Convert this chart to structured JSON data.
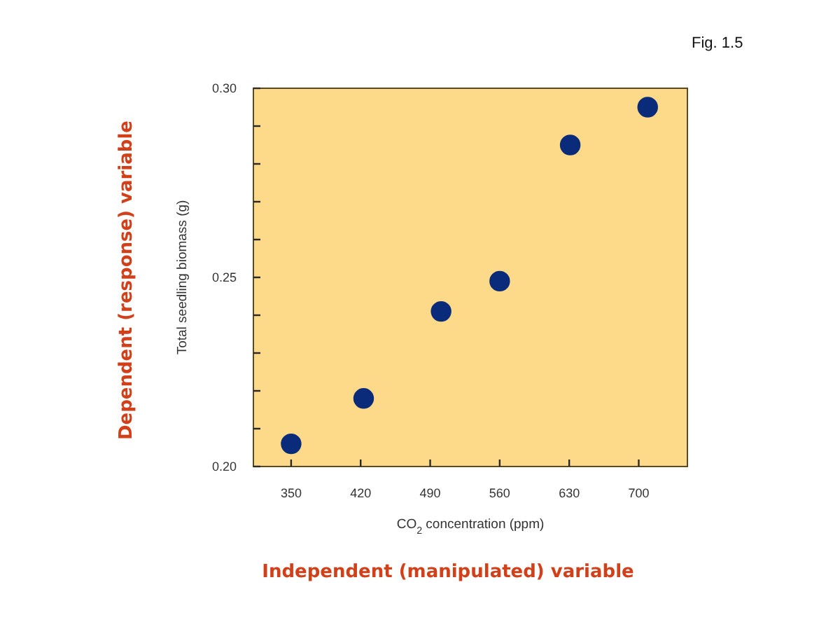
{
  "chart_data": {
    "type": "scatter",
    "xlabel": "CO$_{2}$ concentration (ppm)",
    "ylabel": "Total seedling biomass (g)",
    "annotations": [
      "Fig. 1.5",
      "Dependent (response) variable",
      "Independent (manipulated) variable"
    ],
    "x": [
      350,
      423,
      501,
      560,
      631,
      709
    ],
    "series": [
      {
        "color": "#0a2a7a",
        "values": [
          0.206,
          0.218,
          0.241,
          0.249,
          0.285,
          0.295
        ]
      }
    ],
    "xlim": [
      312,
      749
    ],
    "xticks": [
      350,
      420,
      490,
      560,
      630,
      700
    ],
    "ylim": [
      0.2,
      0.3
    ],
    "yticks": [
      {
        "value": 0.2,
        "label": "0.20"
      },
      {
        "value": 0.21,
        "label": null
      },
      {
        "value": 0.22,
        "label": null
      },
      {
        "value": 0.23,
        "label": null
      },
      {
        "value": 0.24,
        "label": null
      },
      {
        "value": 0.25,
        "label": "0.25"
      },
      {
        "value": 0.26,
        "label": null
      },
      {
        "value": 0.27,
        "label": null
      },
      {
        "value": 0.28,
        "label": null
      },
      {
        "value": 0.29,
        "label": null
      },
      {
        "value": 0.3,
        "label": "0.30"
      }
    ],
    "grid": false,
    "marker": "circle"
  }
}
